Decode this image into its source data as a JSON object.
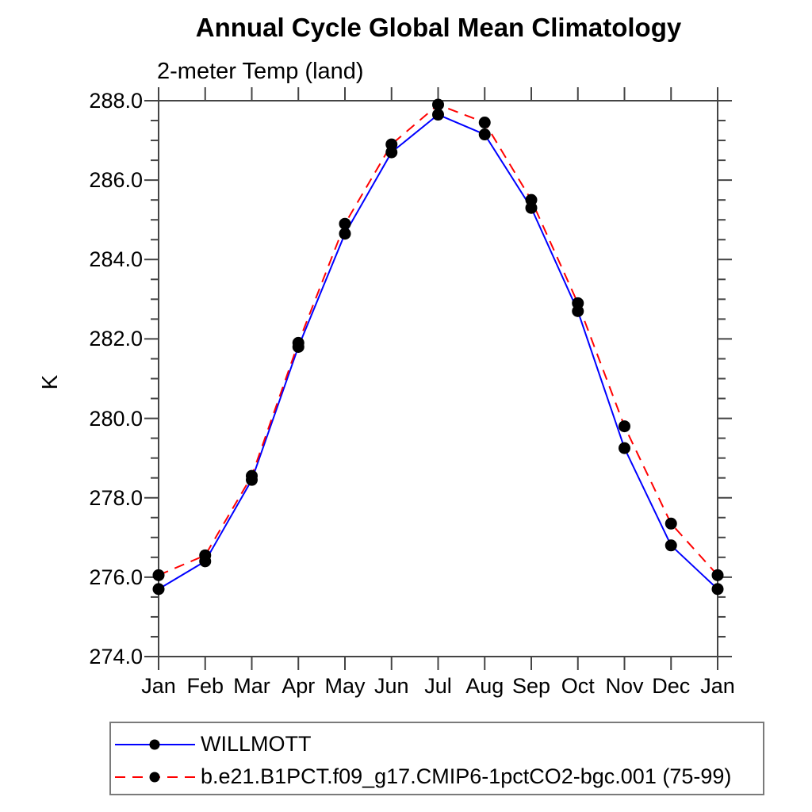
{
  "title": "Annual Cycle Global Mean Climatology",
  "subtitle": "2-meter Temp (land)",
  "colors": {
    "axis": "#444444",
    "text": "#000000",
    "marker": "#000000",
    "legend_border": "#7a7a7a",
    "series_willmott": "#0000ff",
    "series_model": "#ff0000"
  },
  "legend": {
    "entries": [
      {
        "label": "WILLMOTT",
        "color": "#0000ff",
        "style": "solid",
        "marker": "black-dot"
      },
      {
        "label": "b.e21.B1PCT.f09_g17.CMIP6-1pctCO2-bgc.001 (75-99)",
        "color": "#ff0000",
        "style": "dashed",
        "marker": "black-dot"
      }
    ]
  },
  "chart_data": {
    "type": "line",
    "title": "Annual Cycle Global Mean Climatology",
    "subtitle": "2-meter Temp (land)",
    "ylabel": "K",
    "xlabel": "",
    "x": [
      "Jan",
      "Feb",
      "Mar",
      "Apr",
      "May",
      "Jun",
      "Jul",
      "Aug",
      "Sep",
      "Oct",
      "Nov",
      "Dec",
      "Jan"
    ],
    "ylim": [
      274.0,
      288.0
    ],
    "ytick_step": 2.0,
    "yminor_step": 0.5,
    "ytick_labels": [
      "274.0",
      "276.0",
      "278.0",
      "280.0",
      "282.0",
      "284.0",
      "286.0",
      "288.0"
    ],
    "grid": false,
    "legend_position": "bottom",
    "series": [
      {
        "name": "WILLMOTT",
        "color": "#0000ff",
        "style": "solid",
        "marker": "black-dot",
        "values": [
          275.7,
          276.4,
          278.45,
          281.8,
          284.65,
          286.7,
          287.65,
          287.15,
          285.3,
          282.7,
          279.25,
          276.8,
          275.7
        ]
      },
      {
        "name": "b.e21.B1PCT.f09_g17.CMIP6-1pctCO2-bgc.001 (75-99)",
        "color": "#ff0000",
        "style": "dashed",
        "marker": "black-dot",
        "values": [
          276.05,
          276.55,
          278.55,
          281.9,
          284.9,
          286.9,
          287.9,
          287.45,
          285.5,
          282.9,
          279.8,
          277.35,
          276.05
        ]
      }
    ]
  }
}
